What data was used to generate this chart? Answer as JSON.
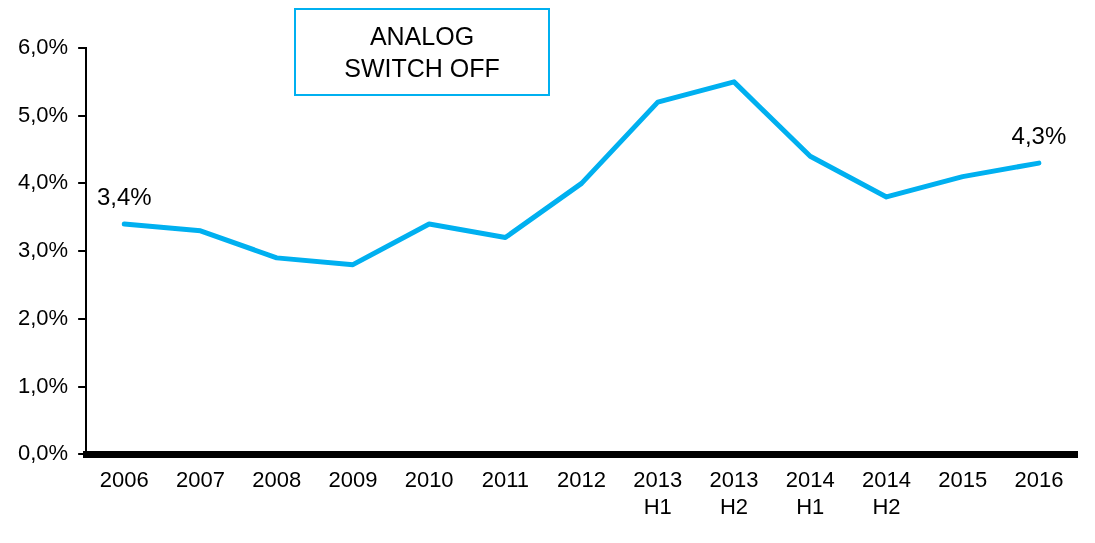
{
  "chart_data": {
    "type": "line",
    "categories": [
      "2006",
      "2007",
      "2008",
      "2009",
      "2010",
      "2011",
      "2012",
      "2013\nH1",
      "2013\nH2",
      "2014\nH1",
      "2014\nH2",
      "2015",
      "2016"
    ],
    "series": [
      {
        "color": "#00b0f0",
        "values": [
          3.4,
          3.3,
          2.9,
          2.8,
          3.4,
          3.2,
          4.0,
          5.2,
          5.5,
          4.4,
          3.8,
          4.1,
          4.3
        ],
        "value_labels": [
          "3,4%",
          null,
          null,
          null,
          null,
          null,
          null,
          null,
          null,
          null,
          null,
          null,
          "4,3%"
        ]
      }
    ],
    "ylim": [
      0,
      6
    ],
    "yticks": [
      {
        "value": 0,
        "label": "0,0%"
      },
      {
        "value": 1,
        "label": "1,0%"
      },
      {
        "value": 2,
        "label": "2,0%"
      },
      {
        "value": 3,
        "label": "3,0%"
      },
      {
        "value": 4,
        "label": "4,0%"
      },
      {
        "value": 5,
        "label": "5,0%"
      },
      {
        "value": 6,
        "label": "6,0%"
      }
    ],
    "grid": false,
    "legend": false,
    "marker": "none",
    "line_style": "solid",
    "annotations": [
      "ANALOG\nSWITCH OFF"
    ]
  }
}
